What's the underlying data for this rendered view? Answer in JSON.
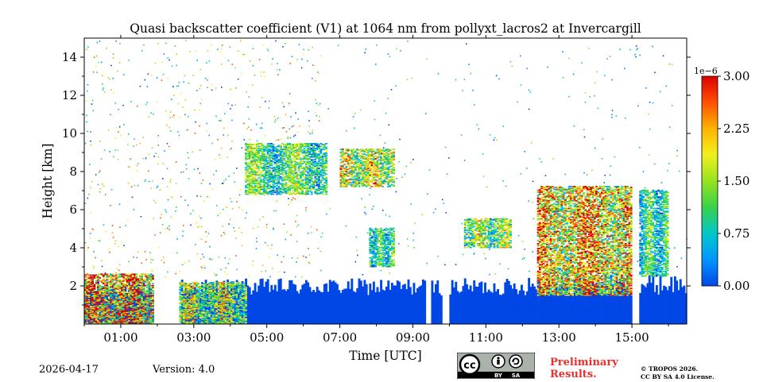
{
  "chart_data": {
    "type": "heatmap",
    "title": "Quasi backscatter coefficient (V1) at 1064 nm from pollyxt_lacros2 at Invercargill",
    "xlabel": "Time [UTC]",
    "ylabel": "Height [km]",
    "xlim_hours": [
      0.0,
      16.5
    ],
    "ylim_km": [
      0,
      15
    ],
    "x_ticks": [
      {
        "hour": 1,
        "label": "01:00"
      },
      {
        "hour": 3,
        "label": "03:00"
      },
      {
        "hour": 5,
        "label": "05:00"
      },
      {
        "hour": 7,
        "label": "07:00"
      },
      {
        "hour": 9,
        "label": "09:00"
      },
      {
        "hour": 11,
        "label": "11:00"
      },
      {
        "hour": 13,
        "label": "13:00"
      },
      {
        "hour": 15,
        "label": "15:00"
      }
    ],
    "y_ticks": [
      {
        "value": 2,
        "label": "2"
      },
      {
        "value": 4,
        "label": "4"
      },
      {
        "value": 6,
        "label": "6"
      },
      {
        "value": 8,
        "label": "8"
      },
      {
        "value": 10,
        "label": "10"
      },
      {
        "value": 12,
        "label": "12"
      },
      {
        "value": 14,
        "label": "14"
      }
    ],
    "colorbar": {
      "exponent_label": "1e−6",
      "range": [
        0,
        3.0
      ],
      "ticks": [
        {
          "value": 0.0,
          "label": "0.00"
        },
        {
          "value": 0.75,
          "label": "0.75"
        },
        {
          "value": 1.5,
          "label": "1.50"
        },
        {
          "value": 2.25,
          "label": "2.25"
        },
        {
          "value": 3.0,
          "label": "3.00"
        }
      ],
      "colors": [
        "#0047e6",
        "#0096ff",
        "#00c8c8",
        "#38d24a",
        "#96e31e",
        "#f0f01e",
        "#ffb400",
        "#ff5000",
        "#dc0000"
      ]
    },
    "regions": [
      {
        "name": "boundary layer",
        "t0": 0.0,
        "t1": 16.5,
        "h_top_km": [
          1.5,
          2.5
        ],
        "value": 0.05
      },
      {
        "name": "low cloud",
        "t0": 0.0,
        "t1": 1.9,
        "h0_km": 0,
        "h1_km": 2.6,
        "value": 2.4
      },
      {
        "name": "low cloud",
        "t0": 2.6,
        "t1": 4.4,
        "h0_km": 0,
        "h1_km": 2.2,
        "value": 1.6
      },
      {
        "name": "mid cloud",
        "t0": 4.4,
        "t1": 6.6,
        "h0_km": 6.8,
        "h1_km": 9.5,
        "value": 1.2
      },
      {
        "name": "mid cloud",
        "t0": 7.0,
        "t1": 8.5,
        "h0_km": 7.2,
        "h1_km": 9.2,
        "value": 1.8
      },
      {
        "name": "aerosol",
        "t0": 7.8,
        "t1": 8.5,
        "h0_km": 3.0,
        "h1_km": 5.0,
        "value": 1.0
      },
      {
        "name": "aerosol",
        "t0": 10.4,
        "t1": 11.7,
        "h0_km": 4.0,
        "h1_km": 5.5,
        "value": 1.5
      },
      {
        "name": "cloud",
        "t0": 12.4,
        "t1": 15.0,
        "h0_km": 1.5,
        "h1_km": 7.2,
        "value": 2.2
      },
      {
        "name": "cloud",
        "t0": 15.0,
        "t1": 16.0,
        "h0_km": 2.5,
        "h1_km": 7.0,
        "value": 1.0
      }
    ]
  },
  "footer": {
    "date": "2026-04-17",
    "version": "Version: 4.0",
    "preliminary_line1": "Preliminary",
    "preliminary_line2": "Results.",
    "copyright_line1": "© TROPOS 2026.",
    "copyright_line2": "CC BY SA 4.0 License.",
    "cc_badge": {
      "main": "cc",
      "by": "BY",
      "sa": "SA"
    }
  }
}
